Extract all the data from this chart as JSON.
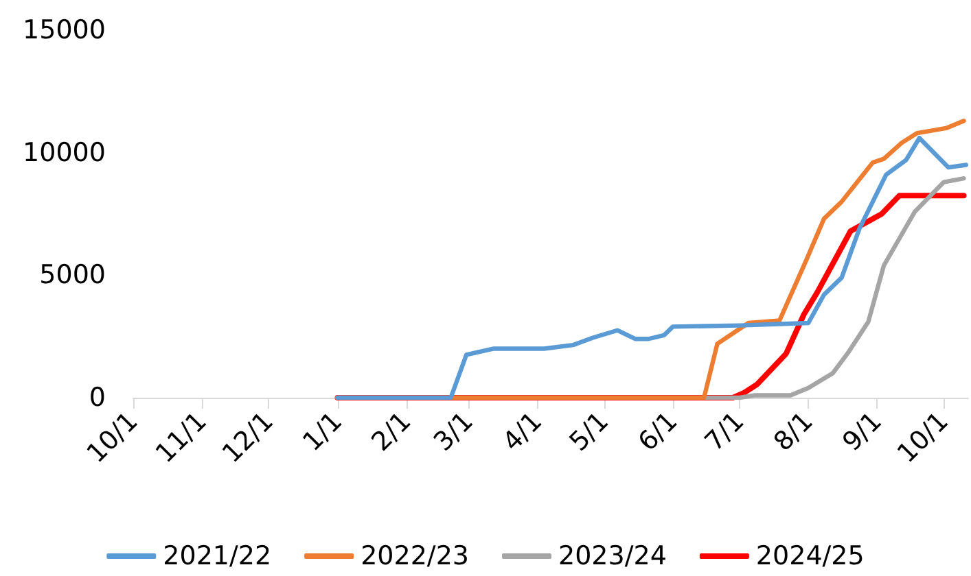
{
  "chart_data": {
    "type": "line",
    "xlim": [
      "2024-10-01",
      "2025-10-12"
    ],
    "xticks": [
      {
        "value": "2024-10-01",
        "label": "10/1"
      },
      {
        "value": "2024-11-01",
        "label": "11/1"
      },
      {
        "value": "2024-12-01",
        "label": "12/1"
      },
      {
        "value": "2025-01-01",
        "label": "1/1"
      },
      {
        "value": "2025-02-01",
        "label": "2/1"
      },
      {
        "value": "2025-03-01",
        "label": "3/1"
      },
      {
        "value": "2025-04-01",
        "label": "4/1"
      },
      {
        "value": "2025-05-01",
        "label": "5/1"
      },
      {
        "value": "2025-06-01",
        "label": "6/1"
      },
      {
        "value": "2025-07-01",
        "label": "7/1"
      },
      {
        "value": "2025-08-01",
        "label": "8/1"
      },
      {
        "value": "2025-09-01",
        "label": "9/1"
      },
      {
        "value": "2025-10-01",
        "label": "10/1"
      }
    ],
    "ylim": [
      0,
      15000
    ],
    "yticks": [
      0,
      5000,
      10000,
      15000
    ],
    "grid": false,
    "legend": "bottom",
    "marker": "none",
    "line_style": "solid",
    "series": [
      {
        "name": "2021/22",
        "color": "#5b9bd5",
        "x": [
          "2025-01-01",
          "2025-02-21",
          "2025-02-28",
          "2025-03-12",
          "2025-04-04",
          "2025-04-17",
          "2025-04-26",
          "2025-05-07",
          "2025-05-15",
          "2025-05-21",
          "2025-05-28",
          "2025-06-01",
          "2025-07-01",
          "2025-08-01",
          "2025-08-08",
          "2025-08-16",
          "2025-08-24",
          "2025-09-05",
          "2025-09-14",
          "2025-09-20",
          "2025-10-03",
          "2025-10-11"
        ],
        "values": [
          0,
          0,
          1750,
          2000,
          2000,
          2150,
          2450,
          2750,
          2400,
          2400,
          2550,
          2900,
          2950,
          3050,
          4200,
          4900,
          6900,
          9100,
          9700,
          10600,
          9400,
          9500
        ]
      },
      {
        "name": "2022/23",
        "color": "#ed7d31",
        "x": [
          "2025-01-01",
          "2025-06-15",
          "2025-06-21",
          "2025-07-05",
          "2025-07-19",
          "2025-07-31",
          "2025-08-08",
          "2025-08-16",
          "2025-08-30",
          "2025-09-04",
          "2025-09-12",
          "2025-09-19",
          "2025-10-02",
          "2025-10-10"
        ],
        "values": [
          0,
          0,
          2200,
          3050,
          3150,
          5600,
          7300,
          8000,
          9600,
          9750,
          10400,
          10800,
          11000,
          11300
        ]
      },
      {
        "name": "2023/24",
        "color": "#a5a5a5",
        "x": [
          "2025-01-01",
          "2025-07-01",
          "2025-07-08",
          "2025-07-24",
          "2025-08-01",
          "2025-08-12",
          "2025-08-19",
          "2025-08-28",
          "2025-09-04",
          "2025-09-11",
          "2025-09-18",
          "2025-10-01",
          "2025-10-10"
        ],
        "values": [
          0,
          0,
          100,
          100,
          400,
          1000,
          1850,
          3100,
          5400,
          6500,
          7600,
          8800,
          8950
        ]
      },
      {
        "name": "2024/25",
        "color": "#ff0000",
        "x": [
          "2025-01-01",
          "2025-06-28",
          "2025-07-03",
          "2025-07-09",
          "2025-07-22",
          "2025-07-30",
          "2025-08-05",
          "2025-08-20",
          "2025-08-26",
          "2025-09-03",
          "2025-09-11",
          "2025-10-10"
        ],
        "values": [
          0,
          0,
          200,
          550,
          1800,
          3400,
          4300,
          6800,
          7100,
          7500,
          8250,
          8250
        ]
      }
    ]
  }
}
